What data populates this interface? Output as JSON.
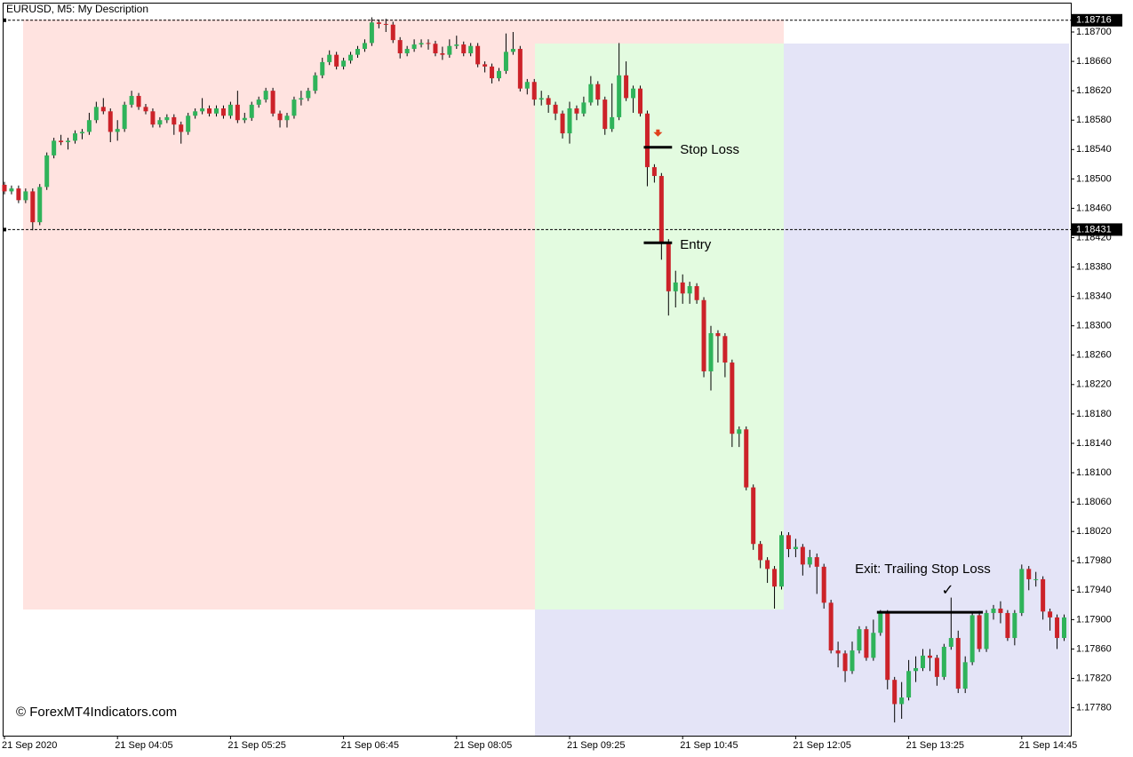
{
  "chart_data": {
    "type": "candlestick",
    "title": "EURUSD, M5:  My Description",
    "watermark": "© ForexMT4Indicators.com",
    "up_color": "#2fb35a",
    "down_color": "#cc2229",
    "categories": [
      "21 Sep 2020",
      null,
      null,
      null,
      null,
      null,
      null,
      null,
      null,
      null,
      null,
      null,
      null,
      null,
      null,
      null,
      "21 Sep 04:05",
      null,
      null,
      null,
      null,
      null,
      null,
      null,
      null,
      null,
      null,
      null,
      null,
      null,
      null,
      null,
      "21 Sep 05:25",
      null,
      null,
      null,
      null,
      null,
      null,
      null,
      null,
      null,
      null,
      null,
      null,
      null,
      null,
      null,
      "21 Sep 06:45",
      null,
      null,
      null,
      null,
      null,
      null,
      null,
      null,
      null,
      null,
      null,
      null,
      null,
      null,
      null,
      "21 Sep 08:05",
      null,
      null,
      null,
      null,
      null,
      null,
      null,
      null,
      null,
      null,
      null,
      null,
      null,
      null,
      null,
      "21 Sep 09:25",
      null,
      null,
      null,
      null,
      null,
      null,
      null,
      null,
      null,
      null,
      null,
      null,
      null,
      null,
      null,
      "21 Sep 10:45",
      null,
      null,
      null,
      null,
      null,
      null,
      null,
      null,
      null,
      null,
      null,
      null,
      null,
      null,
      null,
      "21 Sep 12:05",
      null,
      null,
      null,
      null,
      null,
      null,
      null,
      null,
      null,
      null,
      null,
      null,
      null,
      null,
      null,
      "21 Sep 13:25",
      null,
      null,
      null,
      null,
      null,
      null,
      null,
      null,
      null,
      null,
      null,
      null,
      null,
      null,
      null,
      "21 Sep 14:45",
      null,
      null,
      null,
      null,
      null,
      null
    ],
    "open": [
      1.18492,
      1.18483,
      1.18487,
      1.18471,
      1.18483,
      1.18441,
      1.18489,
      1.18532,
      1.18552,
      1.1855,
      1.18552,
      1.18562,
      1.18564,
      1.1858,
      1.18598,
      1.18592,
      1.18564,
      1.18568,
      1.18601,
      1.18613,
      1.18598,
      1.18592,
      1.18574,
      1.1858,
      1.18584,
      1.18574,
      1.18564,
      1.18586,
      1.18592,
      1.18596,
      1.18589,
      1.18596,
      1.18586,
      1.18601,
      1.1858,
      1.18583,
      1.18601,
      1.18608,
      1.1862,
      1.18589,
      1.1858,
      1.18586,
      1.18608,
      1.1861,
      1.1862,
      1.18641,
      1.18659,
      1.18669,
      1.18653,
      1.18661,
      1.18669,
      1.18677,
      1.18685,
      1.18713,
      1.18711,
      1.1871,
      1.18689,
      1.18671,
      1.18677,
      1.18683,
      1.18685,
      1.18684,
      1.18671,
      1.18669,
      1.18681,
      1.18683,
      1.18671,
      1.18681,
      1.18656,
      1.18653,
      1.18637,
      1.18647,
      1.18673,
      1.18677,
      1.18623,
      1.18632,
      1.18608,
      1.1861,
      1.18601,
      1.18589,
      1.18562,
      1.18596,
      1.18589,
      1.18604,
      1.18629,
      1.18608,
      1.18568,
      1.18584,
      1.18641,
      1.1861,
      1.18623,
      1.18589,
      1.18516,
      1.18504,
      1.18414,
      1.18347,
      1.18359,
      1.18344,
      1.18354,
      1.18335,
      1.18238,
      1.1829,
      1.18286,
      1.1825,
      1.18153,
      1.18159,
      1.1808,
      1.18003,
      1.17981,
      1.17969,
      1.17945,
      1.18015,
      1.17996,
      1.17999,
      1.17975,
      1.17985,
      1.17972,
      1.17923,
      1.17858,
      1.17854,
      1.1783,
      1.17858,
      1.17887,
      1.17848,
      1.17882,
      1.17909,
      1.17818,
      1.17785,
      1.17794,
      1.1783,
      1.17834,
      1.17851,
      1.17848,
      1.17822,
      1.17863,
      1.17875,
      1.17806,
      1.17842,
      1.17906,
      1.1786,
      1.17909,
      1.17915,
      1.17909,
      1.17875,
      1.17909,
      1.17969,
      1.17955,
      1.17955,
      1.17911,
      1.17903,
      1.17875
    ],
    "high": [
      1.18496,
      1.18491,
      1.18491,
      1.18487,
      1.18487,
      1.18493,
      1.18536,
      1.18556,
      1.1856,
      1.18556,
      1.18566,
      1.18568,
      1.1859,
      1.18605,
      1.1861,
      1.18596,
      1.1858,
      1.18605,
      1.1862,
      1.18617,
      1.18602,
      1.18596,
      1.18584,
      1.18588,
      1.18588,
      1.18578,
      1.1859,
      1.18596,
      1.1861,
      1.186,
      1.186,
      1.186,
      1.18605,
      1.1862,
      1.1859,
      1.18605,
      1.18612,
      1.18624,
      1.18624,
      1.18593,
      1.1859,
      1.18612,
      1.1862,
      1.18624,
      1.18645,
      1.18665,
      1.18675,
      1.18673,
      1.18665,
      1.18673,
      1.18681,
      1.1869,
      1.1872,
      1.18717,
      1.18718,
      1.18714,
      1.18693,
      1.18681,
      1.1869,
      1.1869,
      1.1869,
      1.18688,
      1.1868,
      1.1869,
      1.18695,
      1.18687,
      1.18685,
      1.18685,
      1.1866,
      1.18657,
      1.18651,
      1.18698,
      1.187,
      1.18681,
      1.18636,
      1.18636,
      1.1862,
      1.18614,
      1.18605,
      1.18593,
      1.18605,
      1.186,
      1.18612,
      1.1864,
      1.18633,
      1.18612,
      1.1863,
      1.18685,
      1.1866,
      1.18627,
      1.18627,
      1.18593,
      1.1852,
      1.18508,
      1.18418,
      1.18375,
      1.1837,
      1.1836,
      1.18358,
      1.18339,
      1.183,
      1.18294,
      1.1829,
      1.18254,
      1.18163,
      1.18163,
      1.18084,
      1.18007,
      1.17985,
      1.17973,
      1.1802,
      1.18019,
      1.1801,
      1.18003,
      1.17995,
      1.1799,
      1.17976,
      1.17927,
      1.1787,
      1.17858,
      1.1787,
      1.17891,
      1.17891,
      1.179,
      1.17913,
      1.17913,
      1.17822,
      1.17815,
      1.17845,
      1.1785,
      1.1786,
      1.1786,
      1.17852,
      1.17867,
      1.1793,
      1.17885,
      1.1785,
      1.1791,
      1.17912,
      1.17913,
      1.1792,
      1.17925,
      1.17913,
      1.17913,
      1.17975,
      1.17973,
      1.17965,
      1.17959,
      1.17915,
      1.17907,
      1.17907
    ],
    "low": [
      1.18479,
      1.18479,
      1.18467,
      1.18467,
      1.1843,
      1.18437,
      1.18485,
      1.18528,
      1.18546,
      1.1854,
      1.18548,
      1.18554,
      1.1856,
      1.18576,
      1.18588,
      1.1855,
      1.18552,
      1.18564,
      1.18597,
      1.18594,
      1.18588,
      1.1857,
      1.1857,
      1.18576,
      1.1856,
      1.18548,
      1.1856,
      1.18582,
      1.18588,
      1.18585,
      1.18585,
      1.18582,
      1.18582,
      1.18576,
      1.18576,
      1.18579,
      1.18597,
      1.18604,
      1.18585,
      1.1857,
      1.1857,
      1.18582,
      1.186,
      1.18606,
      1.18616,
      1.18637,
      1.18655,
      1.18649,
      1.18649,
      1.18657,
      1.18665,
      1.18673,
      1.18681,
      1.18705,
      1.187,
      1.18685,
      1.18664,
      1.18667,
      1.18673,
      1.18679,
      1.18676,
      1.18667,
      1.18662,
      1.18665,
      1.18677,
      1.18667,
      1.18667,
      1.18652,
      1.18645,
      1.1863,
      1.18633,
      1.18643,
      1.18669,
      1.18619,
      1.18615,
      1.186,
      1.186,
      1.1859,
      1.1858,
      1.18555,
      1.18548,
      1.1858,
      1.18585,
      1.186,
      1.186,
      1.1856,
      1.18564,
      1.1858,
      1.18606,
      1.1859,
      1.18585,
      1.1849,
      1.18495,
      1.1839,
      1.18314,
      1.18325,
      1.1833,
      1.1833,
      1.1833,
      1.1823,
      1.18212,
      1.1825,
      1.1823,
      1.18135,
      1.18135,
      1.18076,
      1.17995,
      1.1797,
      1.1795,
      1.17915,
      1.17941,
      1.17985,
      1.17985,
      1.1796,
      1.17971,
      1.17935,
      1.17915,
      1.17854,
      1.17835,
      1.17815,
      1.17826,
      1.17854,
      1.17844,
      1.17844,
      1.17878,
      1.17805,
      1.1776,
      1.17765,
      1.1779,
      1.17815,
      1.1783,
      1.1783,
      1.1781,
      1.17818,
      1.17859,
      1.178,
      1.178,
      1.17838,
      1.17856,
      1.17856,
      1.179,
      1.17895,
      1.17871,
      1.17865,
      1.17905,
      1.1794,
      1.17945,
      1.179,
      1.17885,
      1.1786,
      1.17871
    ],
    "close": [
      1.18483,
      1.18487,
      1.18471,
      1.18483,
      1.18441,
      1.18489,
      1.18532,
      1.18552,
      1.1855,
      1.18552,
      1.18562,
      1.18564,
      1.1858,
      1.18598,
      1.18592,
      1.18564,
      1.18568,
      1.18601,
      1.18613,
      1.18598,
      1.18592,
      1.18574,
      1.1858,
      1.18584,
      1.18574,
      1.18564,
      1.18586,
      1.18592,
      1.18596,
      1.18589,
      1.18596,
      1.18586,
      1.18601,
      1.1858,
      1.18583,
      1.18601,
      1.18608,
      1.1862,
      1.18589,
      1.1858,
      1.18586,
      1.18608,
      1.1861,
      1.1862,
      1.18641,
      1.18659,
      1.18669,
      1.18653,
      1.18661,
      1.18669,
      1.18677,
      1.18685,
      1.18713,
      1.18711,
      1.1871,
      1.18689,
      1.18671,
      1.18677,
      1.18683,
      1.18685,
      1.18684,
      1.18671,
      1.18669,
      1.18681,
      1.18683,
      1.18671,
      1.18681,
      1.18656,
      1.18653,
      1.18637,
      1.18647,
      1.18673,
      1.18677,
      1.18623,
      1.18632,
      1.18608,
      1.1861,
      1.18601,
      1.18589,
      1.18562,
      1.18596,
      1.18589,
      1.18604,
      1.18629,
      1.18608,
      1.18568,
      1.18584,
      1.18641,
      1.1861,
      1.18623,
      1.18589,
      1.18516,
      1.18504,
      1.18414,
      1.18347,
      1.18359,
      1.18344,
      1.18354,
      1.18335,
      1.18238,
      1.1829,
      1.18286,
      1.1825,
      1.18153,
      1.18159,
      1.1808,
      1.18003,
      1.17981,
      1.17969,
      1.17945,
      1.18015,
      1.17996,
      1.17999,
      1.17975,
      1.17985,
      1.17972,
      1.17923,
      1.17858,
      1.17854,
      1.1783,
      1.17858,
      1.17887,
      1.17848,
      1.17882,
      1.17909,
      1.17818,
      1.17785,
      1.17794,
      1.1783,
      1.17834,
      1.17851,
      1.17848,
      1.17822,
      1.17863,
      1.17875,
      1.17806,
      1.17842,
      1.17906,
      1.1786,
      1.17909,
      1.17915,
      1.17909,
      1.17875,
      1.17909,
      1.17969,
      1.17955,
      1.17955,
      1.17911,
      1.17903,
      1.17875,
      1.17903
    ],
    "ylim": [
      1.17742,
      1.18723
    ],
    "yticks": [
      {
        "value": 1.187,
        "label": "1.18700"
      },
      {
        "value": 1.1866,
        "label": "1.18660"
      },
      {
        "value": 1.1862,
        "label": "1.18620"
      },
      {
        "value": 1.1858,
        "label": "1.18580"
      },
      {
        "value": 1.1854,
        "label": "1.18540"
      },
      {
        "value": 1.185,
        "label": "1.18500"
      },
      {
        "value": 1.1846,
        "label": "1.18460"
      },
      {
        "value": 1.1842,
        "label": "1.18420"
      },
      {
        "value": 1.1838,
        "label": "1.18380"
      },
      {
        "value": 1.1834,
        "label": "1.18340"
      },
      {
        "value": 1.183,
        "label": "1.18300"
      },
      {
        "value": 1.1826,
        "label": "1.18260"
      },
      {
        "value": 1.1822,
        "label": "1.18220"
      },
      {
        "value": 1.1818,
        "label": "1.18180"
      },
      {
        "value": 1.1814,
        "label": "1.18140"
      },
      {
        "value": 1.181,
        "label": "1.18100"
      },
      {
        "value": 1.1806,
        "label": "1.18060"
      },
      {
        "value": 1.1802,
        "label": "1.18020"
      },
      {
        "value": 1.1798,
        "label": "1.17980"
      },
      {
        "value": 1.1794,
        "label": "1.17940"
      },
      {
        "value": 1.179,
        "label": "1.17900"
      },
      {
        "value": 1.1786,
        "label": "1.17860"
      },
      {
        "value": 1.1782,
        "label": "1.17820"
      },
      {
        "value": 1.1778,
        "label": "1.17780"
      }
    ],
    "price_lines": [
      {
        "value": 1.18716
      },
      {
        "value": 1.18431
      }
    ],
    "signal": {
      "index": 92.5,
      "price": 1.1856,
      "color": "#e0401c"
    },
    "annotations": [
      {
        "text": "Stop Loss",
        "price": 1.18543,
        "start": 90.5,
        "end": 94.5
      },
      {
        "text": "Entry",
        "price": 1.18413,
        "start": 90.5,
        "end": 94.5
      },
      {
        "text": "Exit: Trailing Stop Loss",
        "price": 1.1791,
        "start": 123.5,
        "end": 138.5,
        "mark": "✓"
      }
    ]
  }
}
